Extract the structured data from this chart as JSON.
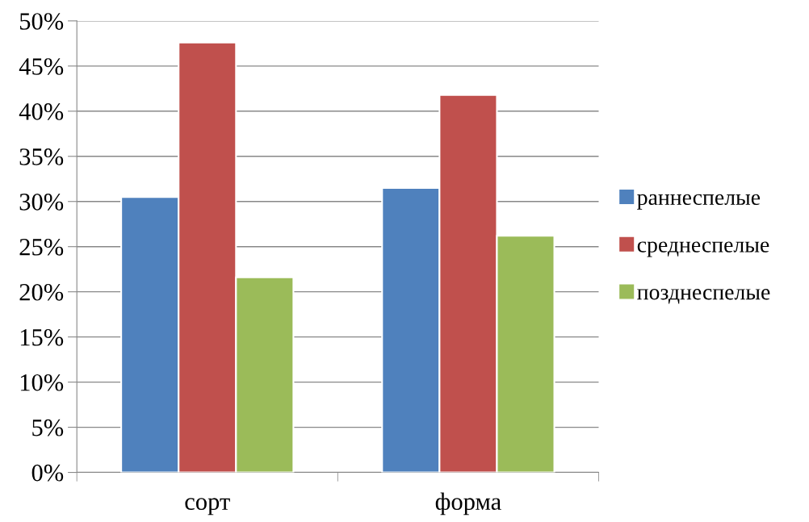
{
  "chart_data": {
    "type": "bar",
    "categories": [
      "сорт",
      "форма"
    ],
    "series": [
      {
        "name": "раннеспелые",
        "color": "#4f81bd",
        "values": [
          30.5,
          31.5
        ]
      },
      {
        "name": "среднеспелые",
        "color": "#c0504d",
        "values": [
          47.6,
          41.8
        ]
      },
      {
        "name": "позднеспелые",
        "color": "#9bbb59",
        "values": [
          21.6,
          26.2
        ]
      }
    ],
    "ylim": [
      0,
      50
    ],
    "yticks": [
      {
        "value": 0,
        "label": "0%"
      },
      {
        "value": 5,
        "label": "5%"
      },
      {
        "value": 10,
        "label": "10%"
      },
      {
        "value": 15,
        "label": "15%"
      },
      {
        "value": 20,
        "label": "20%"
      },
      {
        "value": 25,
        "label": "25%"
      },
      {
        "value": 30,
        "label": "30%"
      },
      {
        "value": 35,
        "label": "35%"
      },
      {
        "value": 40,
        "label": "40%"
      },
      {
        "value": 45,
        "label": "45%"
      },
      {
        "value": 50,
        "label": "50%"
      }
    ],
    "grid": "y",
    "legend": "right"
  }
}
